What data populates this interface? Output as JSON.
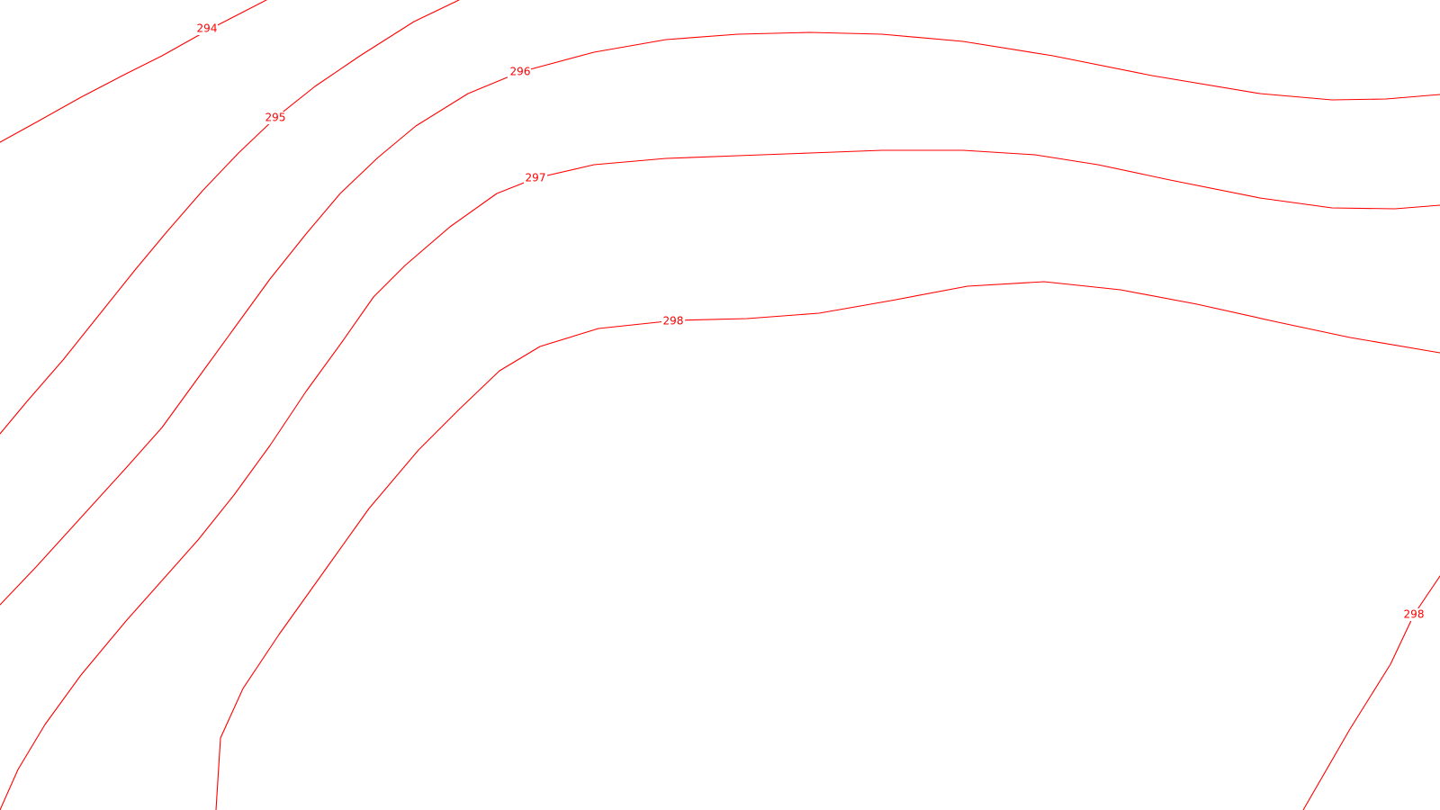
{
  "map": {
    "line_color": "#ff0000",
    "background_color": "#ffffff",
    "contours": [
      {
        "id": "contour-294",
        "elevation": "294"
      },
      {
        "id": "contour-295",
        "elevation": "295"
      },
      {
        "id": "contour-296",
        "elevation": "296"
      },
      {
        "id": "contour-297",
        "elevation": "297"
      },
      {
        "id": "contour-298",
        "elevation": "298"
      },
      {
        "id": "contour-298-east",
        "elevation": "298"
      }
    ]
  }
}
